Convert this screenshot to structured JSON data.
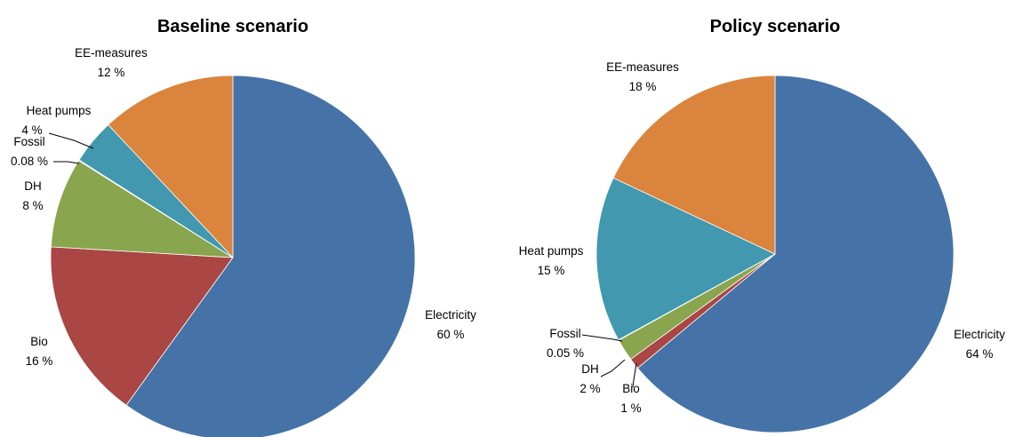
{
  "chart_data": [
    {
      "type": "pie",
      "title": "Baseline scenario",
      "slices": [
        {
          "label": "Electricity",
          "value": 60,
          "value_label": "60 %",
          "color": "#4573a7"
        },
        {
          "label": "Bio",
          "value": 16,
          "value_label": "16 %",
          "color": "#aa4644"
        },
        {
          "label": "DH",
          "value": 8,
          "value_label": "8 %",
          "color": "#89a54e"
        },
        {
          "label": "Fossil",
          "value": 0.08,
          "value_label": "0.08 %",
          "color": "#71588f"
        },
        {
          "label": "Heat pumps",
          "value": 4,
          "value_label": "4 %",
          "color": "#4198af"
        },
        {
          "label": "EE-measures",
          "value": 12,
          "value_label": "12 %",
          "color": "#db843d"
        }
      ]
    },
    {
      "type": "pie",
      "title": "Policy scenario",
      "slices": [
        {
          "label": "Electricity",
          "value": 64,
          "value_label": "64 %",
          "color": "#4573a7"
        },
        {
          "label": "Bio",
          "value": 1,
          "value_label": "1 %",
          "color": "#aa4644"
        },
        {
          "label": "DH",
          "value": 2,
          "value_label": "2 %",
          "color": "#89a54e"
        },
        {
          "label": "Fossil",
          "value": 0.05,
          "value_label": "0.05 %",
          "color": "#71588f"
        },
        {
          "label": "Heat pumps",
          "value": 15,
          "value_label": "15 %",
          "color": "#4198af"
        },
        {
          "label": "EE-measures",
          "value": 18,
          "value_label": "18 %",
          "color": "#db843d"
        }
      ]
    }
  ]
}
